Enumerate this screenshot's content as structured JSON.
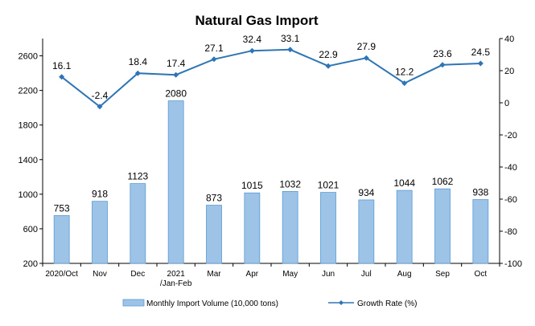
{
  "chart_data": {
    "type": "bar",
    "title": "Natural Gas Import",
    "categories": [
      "2020/Oct",
      "Nov",
      "Dec",
      "2021 /Jan-Feb",
      "Mar",
      "Apr",
      "May",
      "Jun",
      "Jul",
      "Aug",
      "Sep",
      "Oct"
    ],
    "category_lines": [
      [
        "2020/Oct"
      ],
      [
        "Nov"
      ],
      [
        "Dec"
      ],
      [
        "2021",
        "/Jan-Feb"
      ],
      [
        "Mar"
      ],
      [
        "Apr"
      ],
      [
        "May"
      ],
      [
        "Jun"
      ],
      [
        "Jul"
      ],
      [
        "Aug"
      ],
      [
        "Sep"
      ],
      [
        "Oct"
      ]
    ],
    "series": [
      {
        "name": "Monthly Import Volume (10,000 tons)",
        "type": "bar",
        "axis": "left",
        "color": "#9DC3E6",
        "values": [
          753,
          918,
          1123,
          2080,
          873,
          1015,
          1032,
          1021,
          934,
          1044,
          1062,
          938
        ]
      },
      {
        "name": "Growth Rate (%)",
        "type": "line",
        "axis": "right",
        "color": "#2E75B6",
        "values": [
          16.1,
          -2.4,
          18.4,
          17.4,
          27.1,
          32.4,
          33.1,
          22.9,
          27.9,
          12.2,
          23.6,
          24.5
        ]
      }
    ],
    "y_left": {
      "ylim": [
        200,
        2800
      ],
      "ticks": [
        200,
        600,
        1000,
        1400,
        1800,
        2200,
        2600
      ]
    },
    "y_right": {
      "ylim": [
        -100,
        40
      ],
      "ticks": [
        -100,
        -80,
        -60,
        -40,
        -20,
        0,
        20,
        40
      ]
    },
    "legend_position": "bottom",
    "grid": false
  }
}
